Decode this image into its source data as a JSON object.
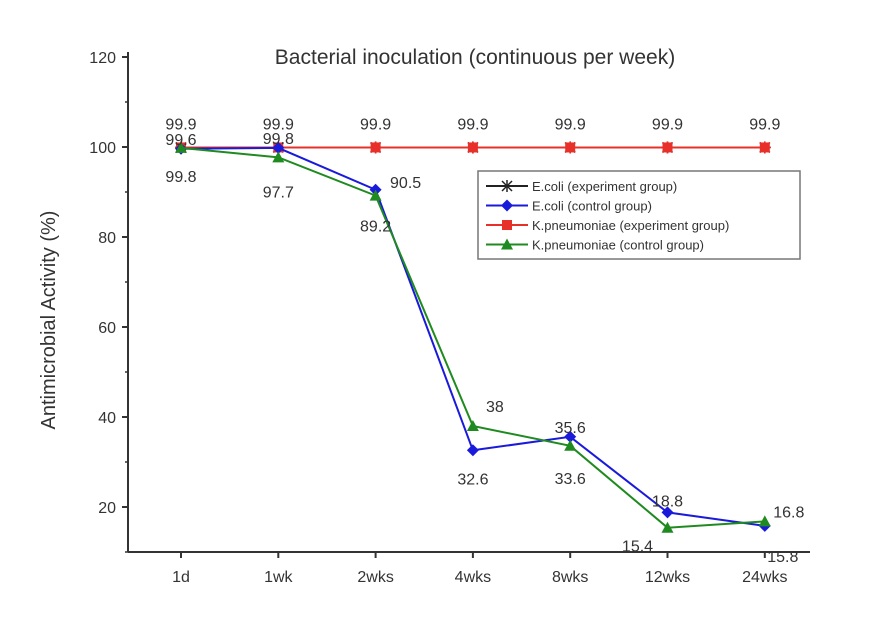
{
  "chart_data": {
    "type": "line",
    "title": "Bacterial inoculation (continuous per week)",
    "xlabel": "",
    "ylabel": "Antimicrobial Activity (%)",
    "categories": [
      "1d",
      "1wk",
      "2wks",
      "4wks",
      "8wks",
      "12wks",
      "24wks"
    ],
    "ylim": [
      10,
      120
    ],
    "yticks": [
      20,
      40,
      60,
      80,
      100,
      120
    ],
    "grid": false,
    "legend_position": "upper-right",
    "series": [
      {
        "name": "E.coli (experiment group)",
        "color": "#222222",
        "marker": "star",
        "values": [
          99.9,
          99.9,
          99.9,
          99.9,
          99.9,
          99.9,
          99.9
        ],
        "labels": [
          "",
          "",
          "",
          "",
          "",
          "",
          ""
        ]
      },
      {
        "name": "E.coli (control group)",
        "color": "#1a1adb",
        "marker": "diamond",
        "values": [
          99.6,
          99.8,
          90.5,
          32.6,
          35.6,
          18.8,
          15.8
        ],
        "labels": [
          "99.6",
          "99.8",
          "90.5",
          "32.6",
          "35.6",
          "18.8",
          "15.8"
        ]
      },
      {
        "name": "K.pneumoniae (experiment group)",
        "color": "#e8302a",
        "marker": "square",
        "values": [
          99.9,
          99.9,
          99.9,
          99.9,
          99.9,
          99.9,
          99.9
        ],
        "labels": [
          "99.9",
          "99.9",
          "99.9",
          "99.9",
          "99.9",
          "99.9",
          "99.9"
        ]
      },
      {
        "name": "K.pneumoniae (control group)",
        "color": "#1f8a1f",
        "marker": "triangle",
        "values": [
          99.8,
          97.7,
          89.2,
          38,
          33.6,
          15.4,
          16.8
        ],
        "labels": [
          "99.8",
          "97.7",
          "89.2",
          "38",
          "33.6",
          "15.4",
          "16.8"
        ]
      }
    ]
  }
}
